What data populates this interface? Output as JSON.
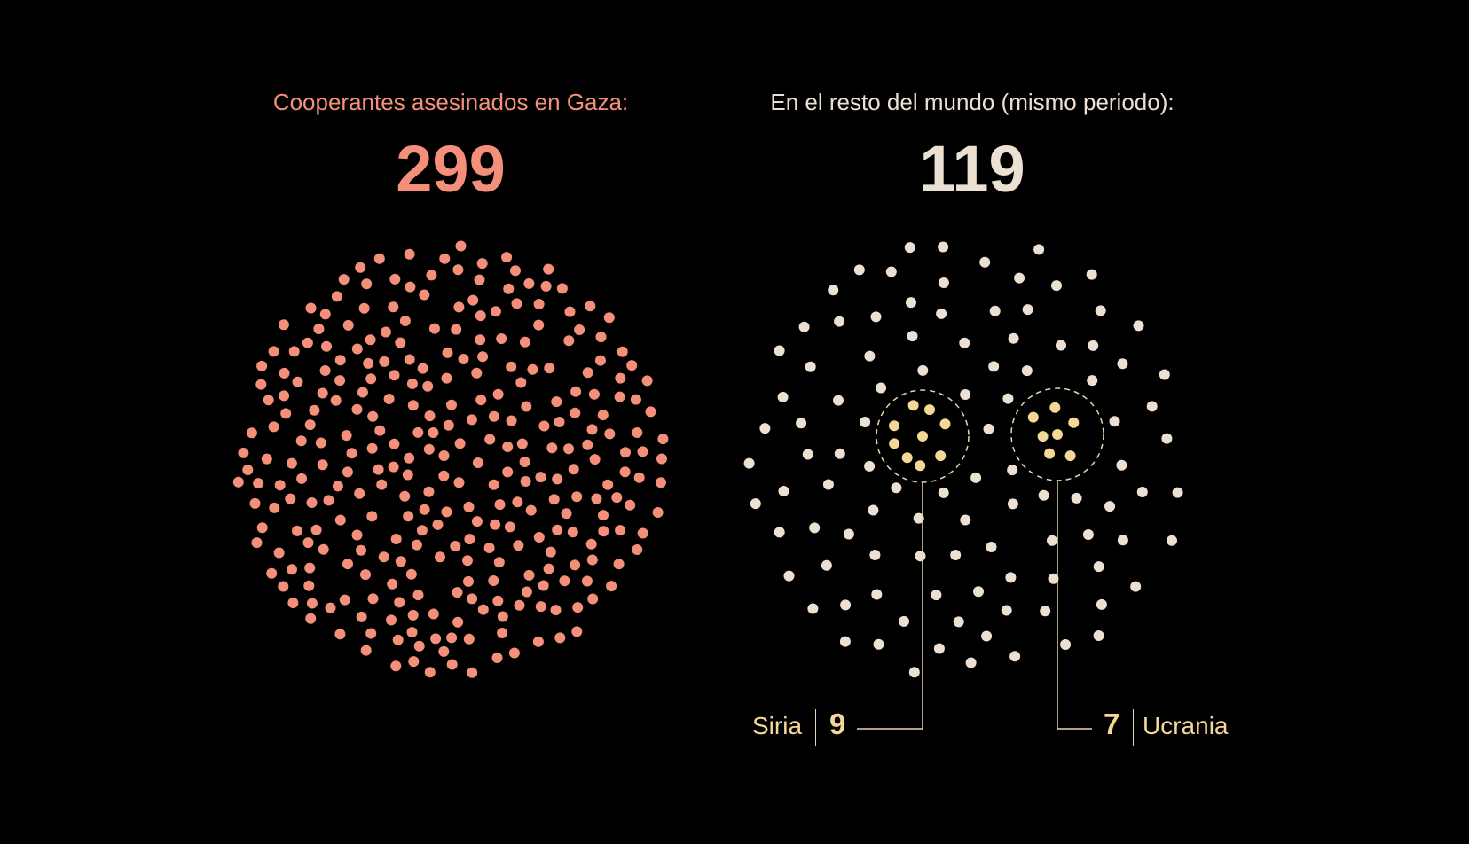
{
  "colors": {
    "background": "#000000",
    "gaza": "#f4907a",
    "world": "#ece0d2",
    "highlight": "#f3d896",
    "leader": "#e8d4b0"
  },
  "panels": {
    "gaza": {
      "label": "Cooperantes asesinados en Gaza:",
      "count": "299"
    },
    "world": {
      "label": "En el resto del mundo (mismo periodo):",
      "count": "119"
    }
  },
  "callouts": {
    "siria": {
      "name": "Siria",
      "count": "9"
    },
    "ucrania": {
      "name": "Ucrania",
      "count": "7"
    }
  },
  "chart_data": [
    {
      "type": "scatter",
      "title": "Cooperantes asesinados en Gaza:",
      "series": [
        {
          "name": "Gaza",
          "count": 299
        }
      ]
    },
    {
      "type": "scatter",
      "title": "En el resto del mundo (mismo periodo):",
      "series": [
        {
          "name": "Siria",
          "count": 9
        },
        {
          "name": "Ucrania",
          "count": 7
        },
        {
          "name": "",
          "count": 103
        }
      ]
    }
  ]
}
